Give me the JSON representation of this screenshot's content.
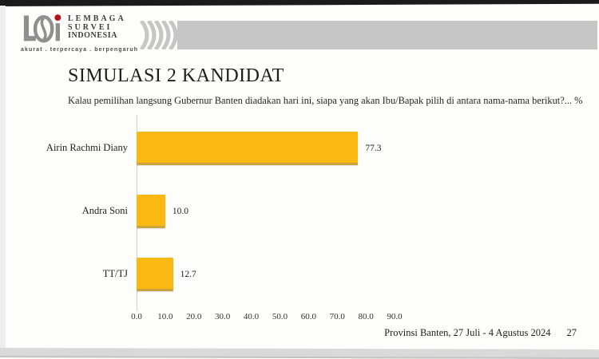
{
  "logo": {
    "lines": [
      "LEMBAGA",
      "SURVEI",
      "INDONESIA"
    ],
    "tagline": "akurat . terpercaya . berpengaruh",
    "mark_color": "#8f8f8f",
    "dot_color": "#b5121b"
  },
  "banner": {
    "color": "#c6c6c6"
  },
  "header": {
    "title": "SIMULASI 2 KANDIDAT",
    "subtitle": "Kalau pemilihan langsung Gubernur Banten diadakan hari ini, siapa yang akan Ibu/Bapak pilih di antara nama-nama berikut?... %"
  },
  "chart_data": {
    "type": "bar",
    "orientation": "horizontal",
    "title": "SIMULASI 2 KANDIDAT",
    "categories": [
      "Airin Rachmi Diany",
      "Andra Soni",
      "TT/TJ"
    ],
    "values": [
      77.3,
      10.0,
      12.7
    ],
    "value_labels": [
      "77.3",
      "10.0",
      "12.7"
    ],
    "x_ticks": [
      "0.0",
      "10.0",
      "20.0",
      "30.0",
      "40.0",
      "50.0",
      "60.0",
      "70.0",
      "80.0",
      "90.0"
    ],
    "xlim": [
      0,
      90
    ],
    "bar_color": "#f9b912",
    "grid": false,
    "legend": false
  },
  "footer": {
    "caption": "Provinsi Banten, 27 Juli - 4 Agustus 2024",
    "page_number": "27"
  }
}
